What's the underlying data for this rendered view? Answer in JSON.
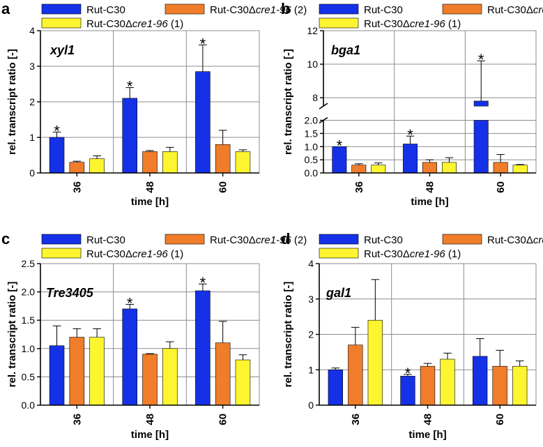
{
  "colors": {
    "rut": "#1531E8",
    "d2": "#F07D2A",
    "d1": "#FCF52F",
    "axis": "#000000",
    "grid": "#8c8c8c"
  },
  "legend": {
    "rut": "Rut-C30",
    "d2_prefix": "Rut-C30Δ",
    "d2_gene": "cre1-96",
    "d2_suffix": " (2)",
    "d1_prefix": "Rut-C30Δ",
    "d1_gene": "cre1-96",
    "d1_suffix": " (1)"
  },
  "chart_data": [
    {
      "panel": "a",
      "type": "bar",
      "gene": "xyl1",
      "title": "",
      "xlabel": "time [h]",
      "ylabel": "rel. transcript ratio [-]",
      "categories": [
        "36",
        "48",
        "60"
      ],
      "ylim": [
        0,
        4
      ],
      "yticks": [
        "0",
        "1",
        "2",
        "3",
        "4"
      ],
      "grid": true,
      "series": [
        {
          "name": "Rut-C30",
          "values": [
            1.0,
            2.1,
            2.85
          ],
          "errors": [
            0.15,
            0.3,
            0.75
          ],
          "significant": [
            true,
            true,
            true
          ]
        },
        {
          "name": "Rut-C30Δcre1-96 (2)",
          "values": [
            0.3,
            0.6,
            0.8
          ],
          "errors": [
            0.03,
            0.03,
            0.4
          ],
          "significant": [
            false,
            false,
            false
          ]
        },
        {
          "name": "Rut-C30Δcre1-96 (1)",
          "values": [
            0.4,
            0.6,
            0.6
          ],
          "errors": [
            0.08,
            0.12,
            0.05
          ],
          "significant": [
            false,
            false,
            false
          ]
        }
      ],
      "significance_marker": "*"
    },
    {
      "panel": "b",
      "type": "bar",
      "gene": "bga1",
      "title": "",
      "xlabel": "time [h]",
      "ylabel": "rel. transcript ratio [-]",
      "categories": [
        "36",
        "48",
        "60"
      ],
      "broken_axis": {
        "lower_range": [
          0,
          2.0
        ],
        "upper_range": [
          7.5,
          12
        ]
      },
      "yticks_lower": [
        "0.0",
        "0.5",
        "1.0",
        "1.5",
        "2.0"
      ],
      "yticks_upper": [
        "8",
        "10",
        "12"
      ],
      "grid": true,
      "series": [
        {
          "name": "Rut-C30",
          "values": [
            1.0,
            1.1,
            7.8
          ],
          "errors": [
            0.0,
            0.3,
            2.4
          ],
          "significant": [
            true,
            true,
            true
          ]
        },
        {
          "name": "Rut-C30Δcre1-96 (2)",
          "values": [
            0.3,
            0.4,
            0.4
          ],
          "errors": [
            0.05,
            0.1,
            0.3
          ],
          "significant": [
            false,
            false,
            false
          ]
        },
        {
          "name": "Rut-C30Δcre1-96 (1)",
          "values": [
            0.3,
            0.4,
            0.3
          ],
          "errors": [
            0.08,
            0.18,
            0.02
          ],
          "significant": [
            false,
            false,
            false
          ]
        }
      ],
      "significance_marker": "*"
    },
    {
      "panel": "c",
      "type": "bar",
      "gene": "Tre3405",
      "title": "",
      "xlabel": "time [h]",
      "ylabel": "rel. transcript ratio [-]",
      "categories": [
        "36",
        "48",
        "60"
      ],
      "ylim": [
        0,
        2.5
      ],
      "yticks": [
        "0.0",
        "0.5",
        "1.0",
        "1.5",
        "2.0",
        "2.5"
      ],
      "grid": true,
      "series": [
        {
          "name": "Rut-C30",
          "values": [
            1.05,
            1.7,
            2.02
          ],
          "errors": [
            0.35,
            0.08,
            0.12
          ],
          "significant": [
            false,
            true,
            true
          ]
        },
        {
          "name": "Rut-C30Δcre1-96 (2)",
          "values": [
            1.2,
            0.9,
            1.1
          ],
          "errors": [
            0.15,
            0.01,
            0.38
          ],
          "significant": [
            false,
            false,
            false
          ]
        },
        {
          "name": "Rut-C30Δcre1-96 (1)",
          "values": [
            1.2,
            1.0,
            0.8
          ],
          "errors": [
            0.15,
            0.12,
            0.09
          ],
          "significant": [
            false,
            false,
            false
          ]
        }
      ],
      "significance_marker": "*"
    },
    {
      "panel": "d",
      "type": "bar",
      "gene": "gal1",
      "title": "",
      "xlabel": "time [h]",
      "ylabel": "rel. transcript ratio [-]",
      "categories": [
        "36",
        "48",
        "60"
      ],
      "ylim": [
        0,
        4
      ],
      "yticks": [
        "0",
        "1",
        "2",
        "3",
        "4"
      ],
      "grid": true,
      "series": [
        {
          "name": "Rut-C30",
          "values": [
            1.0,
            0.82,
            1.38
          ],
          "errors": [
            0.05,
            0.05,
            0.5
          ],
          "significant": [
            false,
            true,
            false
          ]
        },
        {
          "name": "Rut-C30Δcre1-96 (2)",
          "values": [
            1.7,
            1.1,
            1.1
          ],
          "errors": [
            0.5,
            0.08,
            0.45
          ],
          "significant": [
            false,
            false,
            false
          ]
        },
        {
          "name": "Rut-C30Δcre1-96 (1)",
          "values": [
            2.4,
            1.3,
            1.1
          ],
          "errors": [
            1.15,
            0.17,
            0.15
          ],
          "significant": [
            false,
            false,
            false
          ]
        }
      ],
      "significance_marker": "*"
    }
  ]
}
